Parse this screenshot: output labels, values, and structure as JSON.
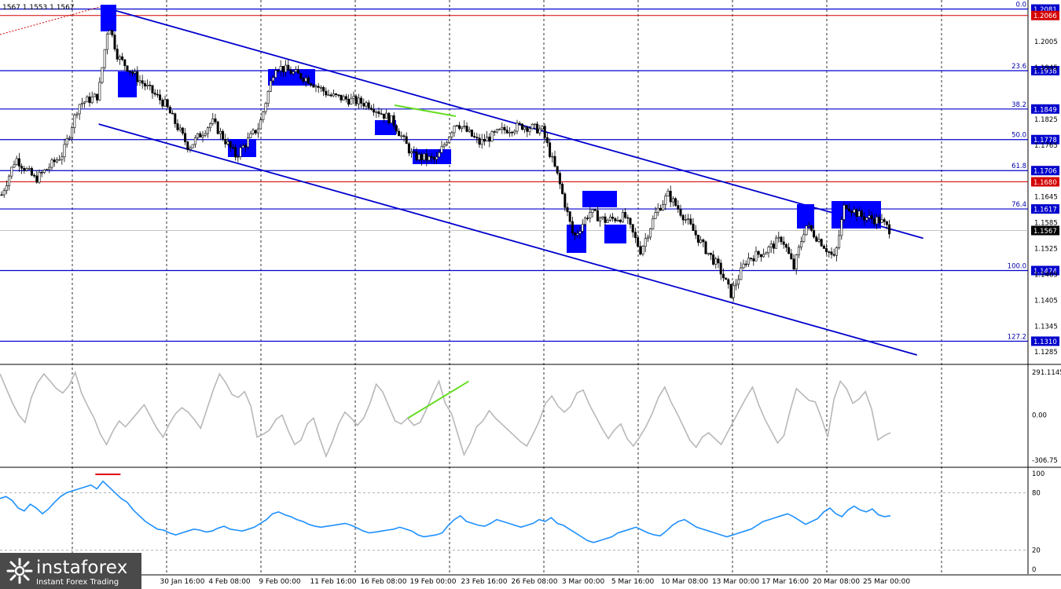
{
  "chart_data": {
    "type": "candlestick",
    "panel_header": "1567 1.1553 1.1567",
    "price_axis": {
      "ticks": [
        "1.2005",
        "1.1945",
        "1.1825",
        "1.1765",
        "1.1645",
        "1.1585",
        "1.1525",
        "1.1465",
        "1.1405",
        "1.1345",
        "1.1285"
      ],
      "ylim": [
        1.1258,
        1.2102
      ]
    },
    "x_axis_labels": [
      "30 Jan 16:00",
      "4 Feb 08:00",
      "9 Feb 00:00",
      "11 Feb 16:00",
      "16 Feb 08:00",
      "19 Feb 00:00",
      "23 Feb 16:00",
      "26 Feb 08:00",
      "3 Mar 00:00",
      "5 Mar 16:00",
      "10 Mar 08:00",
      "13 Mar 00:00",
      "17 Mar 16:00",
      "20 Mar 08:00",
      "25 Mar 00:00"
    ],
    "fibonacci_levels": [
      {
        "level": "0.0",
        "price": 1.2081,
        "label": "1.2081"
      },
      {
        "level": "23.6",
        "price": 1.1938,
        "label": "1.1938"
      },
      {
        "level": "38.2",
        "price": 1.1849,
        "label": "1.1849"
      },
      {
        "level": "50.0",
        "price": 1.1778,
        "label": "1.1778"
      },
      {
        "level": "61.8",
        "price": 1.1706,
        "label": "1.1706"
      },
      {
        "level": "76.4",
        "price": 1.1617,
        "label": "1.1617"
      },
      {
        "level": "100.0",
        "price": 1.1474,
        "label": "1.1474"
      },
      {
        "level": "127.2",
        "price": 1.131,
        "label": "1.1310"
      }
    ],
    "red_levels": [
      {
        "price": 1.2066,
        "label": "1.2066"
      },
      {
        "price": 1.168,
        "label": "1.1680"
      }
    ],
    "current_price": {
      "price": 1.1567,
      "label": "1.1567"
    },
    "channel": {
      "upper": [
        {
          "t": 0.107,
          "p": 1.2081
        },
        {
          "t": 0.898,
          "p": 1.1549
        }
      ],
      "lower": [
        {
          "t": 0.096,
          "p": 1.1814
        },
        {
          "t": 0.892,
          "p": 1.1278
        }
      ]
    },
    "cci": {
      "ticks": [
        "291.1145",
        "0.00",
        "-306.75"
      ],
      "range": [
        -306.75,
        291.1145
      ],
      "values": [
        280,
        180,
        80,
        0,
        -50,
        120,
        220,
        280,
        230,
        180,
        150,
        200,
        290,
        150,
        60,
        -20,
        -130,
        -200,
        -110,
        -40,
        -80,
        -30,
        20,
        70,
        -10,
        -90,
        -150,
        -60,
        10,
        50,
        20,
        -30,
        -90,
        40,
        170,
        280,
        220,
        140,
        120,
        160,
        60,
        -150,
        -130,
        -100,
        -30,
        0,
        -110,
        -200,
        -170,
        -60,
        -20,
        -160,
        -280,
        -180,
        -60,
        20,
        -20,
        -70,
        -20,
        80,
        210,
        160,
        60,
        -40,
        -60,
        -20,
        -70,
        -50,
        40,
        140,
        230,
        80,
        10,
        -130,
        -270,
        -190,
        -80,
        -40,
        30,
        -20,
        -60,
        -100,
        -140,
        -180,
        -210,
        -130,
        -40,
        80,
        130,
        60,
        20,
        60,
        150,
        170,
        70,
        -10,
        -90,
        -160,
        -100,
        -60,
        -160,
        -210,
        -150,
        -80,
        10,
        120,
        190,
        90,
        10,
        -80,
        -170,
        -220,
        -150,
        -120,
        -160,
        -200,
        -120,
        -40,
        40,
        120,
        190,
        70,
        -30,
        -110,
        -190,
        -140,
        30,
        180,
        140,
        100,
        90,
        -20,
        -150,
        110,
        230,
        180,
        80,
        110,
        160,
        40,
        -170,
        -140,
        -120
      ]
    },
    "cci_divergence": [
      {
        "t": 0.397,
        "v": -20
      },
      {
        "t": 0.456,
        "v": 230
      }
    ],
    "rsi": {
      "ticks": [
        "100",
        "80",
        "20",
        "0"
      ],
      "levels": [
        80,
        20
      ],
      "values": [
        74,
        76,
        72,
        64,
        61,
        68,
        64,
        58,
        63,
        70,
        76,
        80,
        82,
        84,
        86,
        88,
        84,
        92,
        86,
        80,
        74,
        70,
        62,
        56,
        50,
        46,
        42,
        41,
        38,
        36,
        38,
        40,
        42,
        41,
        39,
        40,
        43,
        45,
        42,
        41,
        40,
        42,
        44,
        48,
        52,
        58,
        60,
        57,
        55,
        52,
        50,
        47,
        45,
        44,
        45,
        46,
        47,
        48,
        46,
        43,
        40,
        38,
        39,
        40,
        41,
        42,
        44,
        42,
        40,
        36,
        34,
        35,
        36,
        38,
        46,
        52,
        56,
        50,
        48,
        46,
        45,
        48,
        52,
        50,
        48,
        46,
        44,
        46,
        48,
        52,
        50,
        54,
        48,
        46,
        42,
        38,
        34,
        30,
        28,
        30,
        32,
        34,
        38,
        40,
        42,
        44,
        41,
        38,
        36,
        35,
        40,
        46,
        50,
        52,
        48,
        44,
        42,
        40,
        38,
        36,
        34,
        36,
        38,
        40,
        42,
        46,
        50,
        52,
        54,
        56,
        58,
        55,
        51,
        47,
        50,
        53,
        60,
        64,
        58,
        55,
        62,
        66,
        62,
        60,
        63,
        57,
        55,
        56
      ]
    },
    "rsi_overbought_mark": {
      "t": 0.105,
      "v": 100
    }
  },
  "branding": {
    "name": "instaforex",
    "tagline": "Instant Forex Trading"
  }
}
